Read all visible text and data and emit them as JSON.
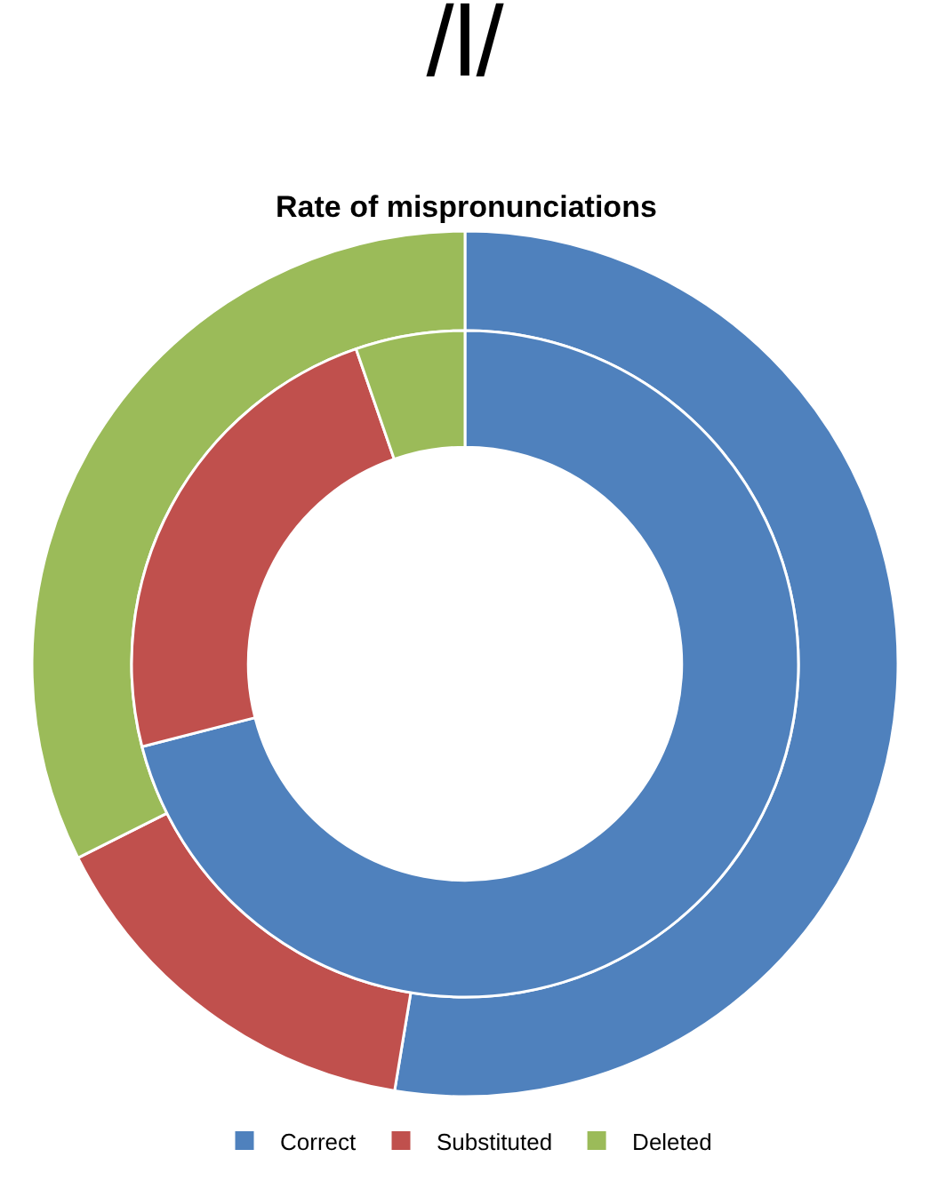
{
  "chart_data": {
    "type": "donut",
    "title": "/l/",
    "subtitle": "Rate of mispronunciations",
    "categories": [
      "Correct",
      "Substituted",
      "Deleted"
    ],
    "series": [
      {
        "values": [
          52.6,
          15,
          32.4
        ],
        "colors": [
          "#4f81bd",
          "#c0504d",
          "#9bbb59"
        ]
      },
      {
        "values": [
          71,
          23.7,
          5.3
        ],
        "colors": [
          "#4f81bd",
          "#c0504d",
          "#9bbb59"
        ]
      }
    ],
    "legend": "bottom"
  }
}
